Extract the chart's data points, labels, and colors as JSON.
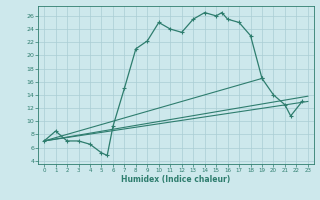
{
  "xlabel": "Humidex (Indice chaleur)",
  "bg_color": "#cde8ec",
  "line_color": "#2e7d6e",
  "grid_color": "#aacdd4",
  "xlim": [
    -0.5,
    23.5
  ],
  "ylim": [
    3.5,
    27.5
  ],
  "xticks": [
    0,
    1,
    2,
    3,
    4,
    5,
    6,
    7,
    8,
    9,
    10,
    11,
    12,
    13,
    14,
    15,
    16,
    17,
    18,
    19,
    20,
    21,
    22,
    23
  ],
  "yticks": [
    4,
    6,
    8,
    10,
    12,
    14,
    16,
    18,
    20,
    22,
    24,
    26
  ],
  "main_series": [
    [
      0,
      7
    ],
    [
      1,
      8.5
    ],
    [
      2,
      7
    ],
    [
      3,
      7
    ],
    [
      4,
      6.5
    ],
    [
      5,
      5.2
    ],
    [
      5.5,
      4.8
    ],
    [
      6,
      9.2
    ],
    [
      7,
      15
    ],
    [
      8,
      21
    ],
    [
      9,
      22.2
    ],
    [
      10,
      25
    ],
    [
      11,
      24
    ],
    [
      12,
      23.5
    ],
    [
      13,
      25.5
    ],
    [
      14,
      26.5
    ],
    [
      15,
      26
    ],
    [
      15.5,
      26.5
    ],
    [
      16,
      25.5
    ],
    [
      17,
      25
    ],
    [
      18,
      23
    ],
    [
      19,
      16.5
    ]
  ],
  "line_lower1": [
    [
      0,
      7
    ],
    [
      23,
      13
    ]
  ],
  "line_lower2": [
    [
      0,
      7
    ],
    [
      23,
      13.8
    ]
  ],
  "line_upper": [
    [
      0,
      7
    ],
    [
      19,
      16.5
    ]
  ],
  "right_segment": [
    [
      19,
      16.5
    ],
    [
      20,
      14
    ],
    [
      21,
      12.5
    ],
    [
      21.5,
      10.8
    ],
    [
      22.5,
      13
    ]
  ]
}
